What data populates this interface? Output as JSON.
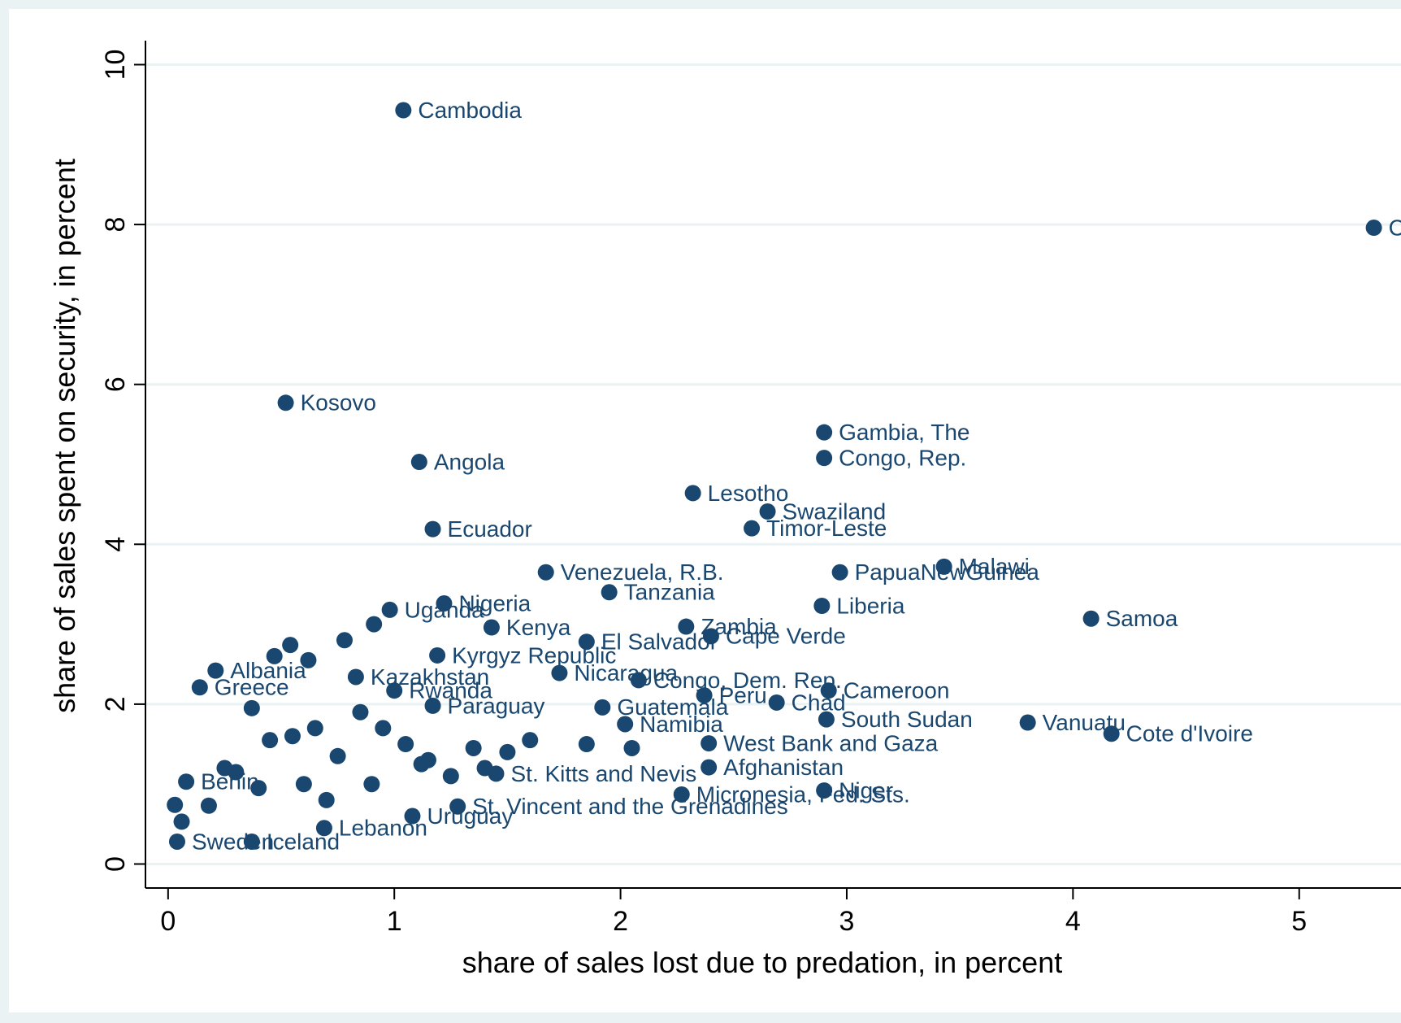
{
  "chart_data": {
    "type": "scatter",
    "x_label": "share of sales lost due to predation, in percent",
    "y_label": "share of sales spent on security, in percent",
    "color": "#1a476f",
    "xlim": [
      -0.1,
      5.45
    ],
    "ylim": [
      -0.3,
      10.3
    ],
    "xticks": [
      0,
      1,
      2,
      3,
      4,
      5
    ],
    "yticks": [
      0,
      2,
      4,
      6,
      8,
      10
    ],
    "grid": true,
    "labels": [
      "Cambodia",
      "C.A.R.",
      "Kosovo",
      "Gambia, The",
      "Congo, Rep.",
      "Angola",
      "Lesotho",
      "Swaziland",
      "Timor-Leste",
      "Ecuador",
      "Malawi",
      "Venezuela, R.B.",
      "PapuaNewGuinea",
      "Tanzania",
      "Liberia",
      "Nigeria",
      "Samoa",
      "Uganda",
      "Kenya",
      "Zambia",
      "Cape Verde",
      "El Salvador",
      "Kyrgyz Republic",
      "Nicaragua",
      "Albania",
      "Congo, Dem. Rep.",
      "Kazakhstan",
      "Greece",
      "Rwanda",
      "Cameroon",
      "Peru",
      "Chad",
      "Paraguay",
      "Guatemala",
      "South Sudan",
      "Vanuatu",
      "Cote d'Ivoire",
      "Namibia",
      "West Bank and Gaza",
      "Afghanistan",
      "St. Kitts and Nevis",
      "Micronesia, Fed. Sts.",
      "Niger",
      "St. Vincent and the Grenadines",
      "Uruguay",
      "Lebanon",
      "Iceland",
      "Sweden",
      "Benin",
      null,
      null,
      null,
      null,
      null,
      null,
      null,
      null,
      null,
      null,
      null,
      null,
      null,
      null,
      null,
      null,
      null,
      null,
      null,
      null,
      null,
      null,
      null,
      null,
      null,
      null,
      null,
      null,
      null,
      null
    ],
    "x": [
      1.04,
      5.33,
      0.52,
      2.9,
      2.9,
      1.11,
      2.32,
      2.65,
      2.58,
      1.17,
      3.43,
      1.67,
      2.97,
      1.95,
      2.89,
      1.22,
      4.08,
      0.98,
      1.43,
      2.29,
      2.4,
      1.85,
      1.19,
      1.73,
      0.21,
      2.08,
      0.83,
      0.14,
      1.0,
      2.92,
      2.37,
      2.69,
      1.17,
      1.92,
      2.91,
      3.8,
      4.17,
      2.02,
      2.39,
      2.39,
      1.45,
      2.27,
      2.9,
      1.28,
      1.08,
      0.69,
      0.37,
      0.04,
      0.08,
      0.91,
      0.54,
      0.47,
      0.78,
      0.62,
      0.37,
      0.45,
      0.55,
      0.85,
      0.95,
      1.05,
      1.15,
      1.35,
      1.5,
      1.6,
      0.3,
      0.25,
      0.4,
      0.7,
      0.9,
      1.25,
      1.85,
      2.05,
      0.03,
      0.06,
      0.18,
      0.6,
      1.12,
      0.75,
      0.65,
      1.4
    ],
    "y": [
      9.43,
      7.96,
      5.77,
      5.4,
      5.08,
      5.03,
      4.64,
      4.41,
      4.2,
      4.19,
      3.72,
      3.65,
      3.65,
      3.4,
      3.23,
      3.26,
      3.07,
      3.18,
      2.96,
      2.97,
      2.85,
      2.78,
      2.61,
      2.39,
      2.42,
      2.3,
      2.34,
      2.21,
      2.17,
      2.17,
      2.11,
      2.02,
      1.98,
      1.96,
      1.81,
      1.77,
      1.63,
      1.75,
      1.51,
      1.21,
      1.13,
      0.87,
      0.92,
      0.72,
      0.6,
      0.45,
      0.28,
      0.28,
      1.03,
      3.0,
      2.74,
      2.6,
      2.8,
      2.55,
      1.95,
      1.55,
      1.6,
      1.9,
      1.7,
      1.5,
      1.3,
      1.45,
      1.4,
      1.55,
      1.15,
      1.2,
      0.95,
      0.8,
      1.0,
      1.1,
      1.5,
      1.45,
      0.74,
      0.53,
      0.73,
      1.0,
      1.25,
      1.35,
      1.7,
      1.2
    ]
  }
}
